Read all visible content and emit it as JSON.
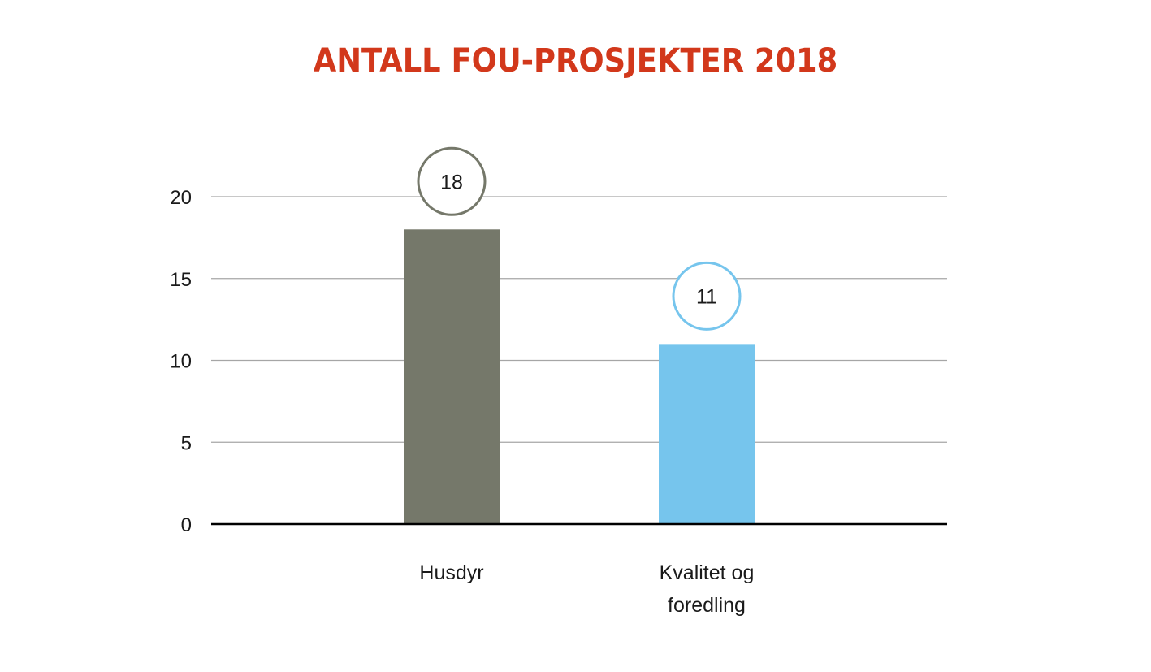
{
  "chart_data": {
    "type": "bar",
    "title": "ANTALL FOU-PROSJEKTER 2018",
    "categories": [
      [
        "Husdyr"
      ],
      [
        "Kvalitet og",
        "foredling"
      ]
    ],
    "values": [
      18,
      11
    ],
    "value_labels": [
      "18",
      "11"
    ],
    "bar_colors": [
      "#75786a",
      "#76c5ed"
    ],
    "y_ticks": [
      0,
      5,
      10,
      15,
      20
    ],
    "ylim": [
      0,
      20
    ],
    "grid": true,
    "xlabel": "",
    "ylabel": ""
  },
  "colors": {
    "title": "#d2381b",
    "gridline": "#a6a6a6",
    "axis": "#000000"
  }
}
